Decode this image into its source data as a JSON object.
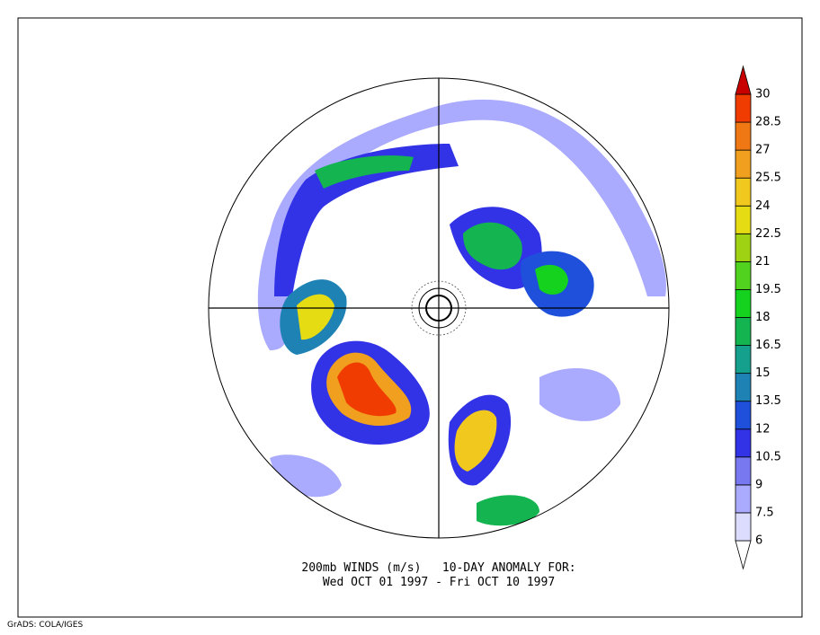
{
  "map": {
    "title_lines": [
      "200mb WINDS (m/s)   10-DAY ANOMALY FOR:",
      "Wed OCT 01 1997 - Fri OCT 10 1997"
    ],
    "credit": "GrADS: COLA/IGES",
    "colorbar": {
      "levels": [
        6,
        7.5,
        9,
        10.5,
        12,
        13.5,
        15,
        16.5,
        18,
        19.5,
        21,
        22.5,
        24,
        25.5,
        27,
        28.5,
        30
      ],
      "colors": [
        "#ffffff",
        "#dcdcff",
        "#aaaaff",
        "#7878f0",
        "#3232e6",
        "#1e50dc",
        "#1e82b4",
        "#14a08c",
        "#14b450",
        "#14d21e",
        "#50d21e",
        "#a0d214",
        "#e6dc14",
        "#f0c81e",
        "#f0a01e",
        "#f07814",
        "#f03c00",
        "#c80000"
      ]
    }
  }
}
